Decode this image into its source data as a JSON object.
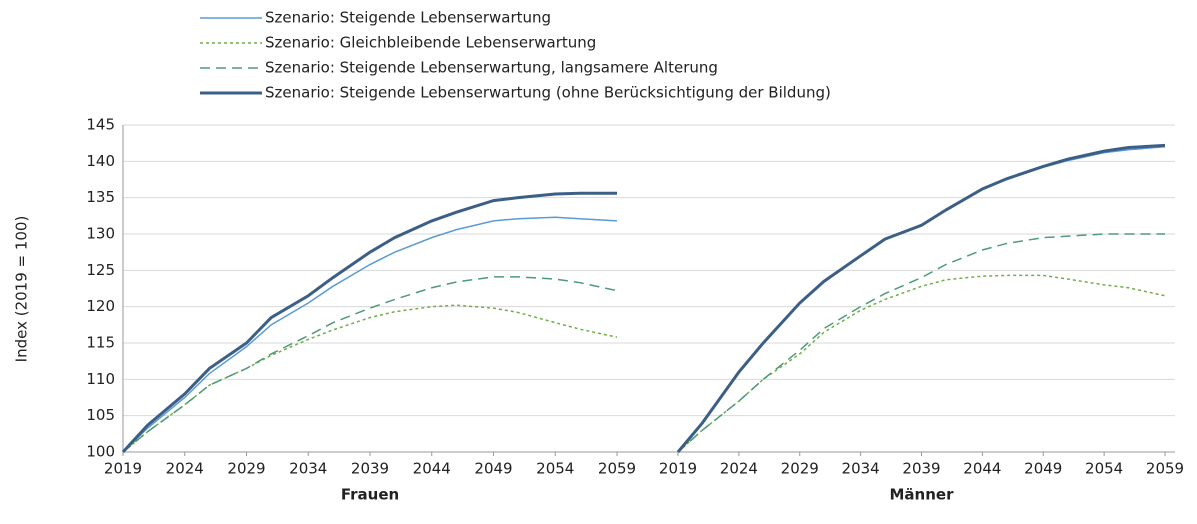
{
  "chart_data": [
    {
      "type": "line",
      "title": "Frauen",
      "ylabel": "Index (2019 = 100)",
      "x": [
        2019,
        2021,
        2024,
        2026,
        2029,
        2031,
        2034,
        2036,
        2039,
        2041,
        2044,
        2046,
        2049,
        2051,
        2054,
        2056,
        2059
      ],
      "xlim": [
        2019,
        2059
      ],
      "xticks": [
        2019,
        2024,
        2029,
        2034,
        2039,
        2044,
        2049,
        2054,
        2059
      ],
      "ylim": [
        100,
        145
      ],
      "yticks": [
        100,
        105,
        110,
        115,
        120,
        125,
        130,
        135,
        140,
        145
      ],
      "grid": true,
      "series": [
        {
          "name": "Szenario: Steigende Lebenserwartung",
          "color": "#5b9bd5",
          "values": [
            100,
            103.3,
            107.5,
            110.8,
            114.5,
            117.5,
            120.5,
            122.8,
            125.8,
            127.5,
            129.5,
            130.6,
            131.8,
            132.1,
            132.3,
            132.1,
            131.8
          ]
        },
        {
          "name": "Szenario: Gleichbleibende Lebenserwartung",
          "color": "#70ad47",
          "values": [
            100,
            102.8,
            106.5,
            109.2,
            111.5,
            113.3,
            115.5,
            116.8,
            118.5,
            119.3,
            120,
            120.2,
            119.8,
            119.2,
            117.8,
            116.9,
            115.8
          ]
        },
        {
          "name": "Szenario: Steigende Lebenserwartung, langsamere Alterung",
          "color": "#4e9a7a",
          "values": [
            100,
            102.8,
            106.5,
            109.2,
            111.5,
            113.5,
            116,
            117.8,
            119.8,
            121,
            122.6,
            123.4,
            124.1,
            124.1,
            123.8,
            123.3,
            122.2
          ]
        },
        {
          "name": "Szenario: Steigende Lebenserwartung (ohne Berücksichtigung der Bildung)",
          "color": "#3b5f86",
          "values": [
            100,
            103.7,
            108,
            111.5,
            115,
            118.5,
            121.5,
            124,
            127.5,
            129.5,
            131.8,
            133,
            134.6,
            135,
            135.5,
            135.6,
            135.6
          ]
        }
      ]
    },
    {
      "type": "line",
      "title": "Männer",
      "x": [
        2019,
        2021,
        2024,
        2026,
        2029,
        2031,
        2034,
        2036,
        2039,
        2041,
        2044,
        2046,
        2049,
        2051,
        2054,
        2056,
        2059
      ],
      "xlim": [
        2019,
        2059
      ],
      "xticks": [
        2019,
        2024,
        2029,
        2034,
        2039,
        2044,
        2049,
        2054,
        2059
      ],
      "ylim": [
        100,
        145
      ],
      "yticks": [
        100,
        105,
        110,
        115,
        120,
        125,
        130,
        135,
        140,
        145
      ],
      "grid": true,
      "series": [
        {
          "color": "#5b9bd5",
          "values": [
            100,
            104,
            111,
            115,
            120.5,
            123.5,
            127,
            129.3,
            131.2,
            133.3,
            136.2,
            137.6,
            139.2,
            140.1,
            141.2,
            141.6,
            142
          ]
        },
        {
          "color": "#70ad47",
          "values": [
            100,
            103,
            107,
            110,
            113.5,
            116.5,
            119.5,
            121,
            122.8,
            123.7,
            124.2,
            124.3,
            124.3,
            123.8,
            123,
            122.6,
            121.5
          ]
        },
        {
          "color": "#4e9a7a",
          "values": [
            100,
            103,
            107,
            110,
            114,
            117,
            120,
            121.8,
            124,
            125.8,
            127.8,
            128.7,
            129.5,
            129.7,
            130,
            130,
            130
          ]
        },
        {
          "color": "#3b5f86",
          "values": [
            100,
            104,
            111,
            115,
            120.5,
            123.5,
            127,
            129.3,
            131.2,
            133.3,
            136.2,
            137.6,
            139.3,
            140.3,
            141.4,
            141.9,
            142.2
          ]
        }
      ]
    }
  ]
}
